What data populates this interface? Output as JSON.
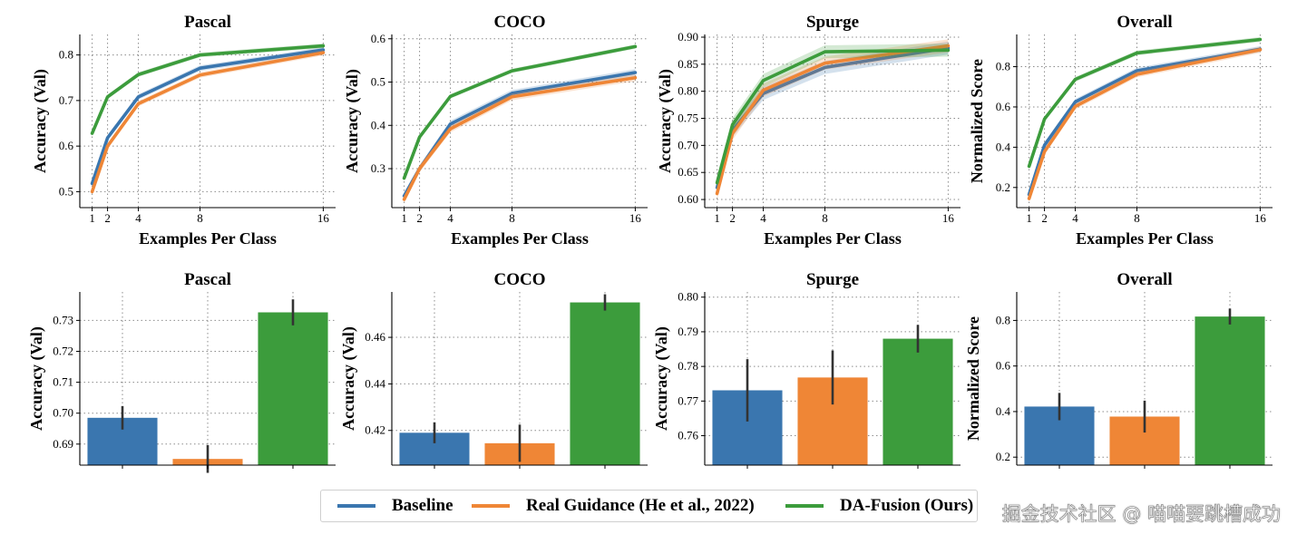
{
  "colors": {
    "baseline": "#3a76af",
    "realguidance": "#ef8636",
    "dafusion": "#3c9c3c",
    "errorbar": "#333333"
  },
  "legend": [
    {
      "name": "Baseline",
      "color": "#3a76af"
    },
    {
      "name": "Real Guidance (He et al., 2022)",
      "color": "#ef8636"
    },
    {
      "name": "DA-Fusion (Ours)",
      "color": "#3c9c3c"
    }
  ],
  "watermark": "掘金技术社区 @ 喵喵要跳槽成功",
  "chart_data": [
    {
      "type": "line",
      "title": "Pascal",
      "xlabel": "Examples Per Class",
      "ylabel": "Accuracy (Val)",
      "x": [
        1,
        2,
        4,
        8,
        16
      ],
      "xticks": [
        1,
        2,
        4,
        8,
        16
      ],
      "xlim": [
        0.2,
        16.8
      ],
      "ylim": [
        0.465,
        0.845
      ],
      "yticks": [
        0.5,
        0.6,
        0.7,
        0.8
      ],
      "ytick_labels": [
        "0.5",
        "0.6",
        "0.7",
        "0.8"
      ],
      "series": [
        {
          "name": "Baseline",
          "values": [
            0.518,
            0.618,
            0.708,
            0.771,
            0.811
          ],
          "band": 0.006
        },
        {
          "name": "Real Guidance (He et al., 2022)",
          "values": [
            0.5,
            0.6,
            0.693,
            0.756,
            0.805
          ],
          "band": 0.006
        },
        {
          "name": "DA-Fusion (Ours)",
          "values": [
            0.628,
            0.708,
            0.757,
            0.8,
            0.82
          ],
          "band": 0.005
        }
      ]
    },
    {
      "type": "line",
      "title": "COCO",
      "xlabel": "Examples Per Class",
      "ylabel": "Accuracy (Val)",
      "x": [
        1,
        2,
        4,
        8,
        16
      ],
      "xticks": [
        1,
        2,
        4,
        8,
        16
      ],
      "xlim": [
        0.2,
        16.8
      ],
      "ylim": [
        0.21,
        0.61
      ],
      "yticks": [
        0.3,
        0.4,
        0.5,
        0.6
      ],
      "ytick_labels": [
        "0.3",
        "0.4",
        "0.5",
        "0.6"
      ],
      "series": [
        {
          "name": "Baseline",
          "values": [
            0.237,
            0.3,
            0.403,
            0.474,
            0.522
          ],
          "band": 0.008
        },
        {
          "name": "Real Guidance (He et al., 2022)",
          "values": [
            0.229,
            0.3,
            0.392,
            0.466,
            0.51
          ],
          "band": 0.008
        },
        {
          "name": "DA-Fusion (Ours)",
          "values": [
            0.278,
            0.373,
            0.467,
            0.526,
            0.582
          ],
          "band": 0.005
        }
      ]
    },
    {
      "type": "line",
      "title": "Spurge",
      "xlabel": "Examples Per Class",
      "ylabel": "Accuracy (Val)",
      "x": [
        1,
        2,
        4,
        8,
        16
      ],
      "xticks": [
        1,
        2,
        4,
        8,
        16
      ],
      "xlim": [
        0.2,
        16.8
      ],
      "ylim": [
        0.585,
        0.905
      ],
      "yticks": [
        0.6,
        0.65,
        0.7,
        0.75,
        0.8,
        0.85,
        0.9
      ],
      "ytick_labels": [
        "0.60",
        "0.65",
        "0.70",
        "0.75",
        "0.80",
        "0.85",
        "0.90"
      ],
      "series": [
        {
          "name": "Baseline",
          "values": [
            0.622,
            0.728,
            0.796,
            0.844,
            0.88
          ],
          "band": 0.012
        },
        {
          "name": "Real Guidance (He et al., 2022)",
          "values": [
            0.611,
            0.722,
            0.802,
            0.852,
            0.884
          ],
          "band": 0.012
        },
        {
          "name": "DA-Fusion (Ours)",
          "values": [
            0.631,
            0.738,
            0.82,
            0.873,
            0.876
          ],
          "band": 0.012
        }
      ]
    },
    {
      "type": "line",
      "title": "Overall",
      "xlabel": "Examples Per Class",
      "ylabel": "Normalized Score",
      "x": [
        1,
        2,
        4,
        8,
        16
      ],
      "xticks": [
        1,
        2,
        4,
        8,
        16
      ],
      "xlim": [
        0.2,
        16.8
      ],
      "ylim": [
        0.1,
        0.96
      ],
      "yticks": [
        0.2,
        0.4,
        0.6,
        0.8
      ],
      "ytick_labels": [
        "0.2",
        "0.4",
        "0.6",
        "0.8"
      ],
      "series": [
        {
          "name": "Baseline",
          "values": [
            0.165,
            0.41,
            0.625,
            0.78,
            0.887
          ],
          "band": 0.015
        },
        {
          "name": "Real Guidance (He et al., 2022)",
          "values": [
            0.145,
            0.378,
            0.603,
            0.762,
            0.884
          ],
          "band": 0.015
        },
        {
          "name": "DA-Fusion (Ours)",
          "values": [
            0.305,
            0.54,
            0.737,
            0.868,
            0.935
          ],
          "band": 0.012
        }
      ]
    },
    {
      "type": "bar",
      "title": "Pascal",
      "xlabel": "",
      "ylabel": "Accuracy (Val)",
      "categories": [
        "Baseline",
        "Real Guidance (He et al., 2022)",
        "DA-Fusion (Ours)"
      ],
      "values": [
        0.6985,
        0.6852,
        0.7326
      ],
      "errors": [
        0.0038,
        0.0045,
        0.0042
      ],
      "ylim": [
        0.6832,
        0.7392
      ],
      "yticks": [
        0.69,
        0.7,
        0.71,
        0.72,
        0.73
      ],
      "ytick_labels": [
        "0.69",
        "0.70",
        "0.71",
        "0.72",
        "0.73"
      ]
    },
    {
      "type": "bar",
      "title": "COCO",
      "xlabel": "",
      "ylabel": "Accuracy (Val)",
      "categories": [
        "Baseline",
        "Real Guidance (He et al., 2022)",
        "DA-Fusion (Ours)"
      ],
      "values": [
        0.419,
        0.4145,
        0.475
      ],
      "errors": [
        0.0045,
        0.008,
        0.0035
      ],
      "ylim": [
        0.4051,
        0.4795
      ],
      "yticks": [
        0.42,
        0.44,
        0.46
      ],
      "ytick_labels": [
        "0.42",
        "0.44",
        "0.46"
      ]
    },
    {
      "type": "bar",
      "title": "Spurge",
      "xlabel": "",
      "ylabel": "Accuracy (Val)",
      "categories": [
        "Baseline",
        "Real Guidance (He et al., 2022)",
        "DA-Fusion (Ours)"
      ],
      "values": [
        0.7731,
        0.7768,
        0.788
      ],
      "errors": [
        0.009,
        0.0078,
        0.004
      ],
      "ylim": [
        0.7515,
        0.8015
      ],
      "yticks": [
        0.76,
        0.77,
        0.78,
        0.79,
        0.8
      ],
      "ytick_labels": [
        "0.76",
        "0.77",
        "0.78",
        "0.79",
        "0.80"
      ]
    },
    {
      "type": "bar",
      "title": "Overall",
      "xlabel": "",
      "ylabel": "Normalized Score",
      "categories": [
        "Baseline",
        "Real Guidance (He et al., 2022)",
        "DA-Fusion (Ours)"
      ],
      "values": [
        0.422,
        0.378,
        0.817
      ],
      "errors": [
        0.06,
        0.07,
        0.035
      ],
      "ylim": [
        0.165,
        0.925
      ],
      "yticks": [
        0.2,
        0.4,
        0.6,
        0.8
      ],
      "ytick_labels": [
        "0.2",
        "0.4",
        "0.6",
        "0.8"
      ]
    }
  ]
}
